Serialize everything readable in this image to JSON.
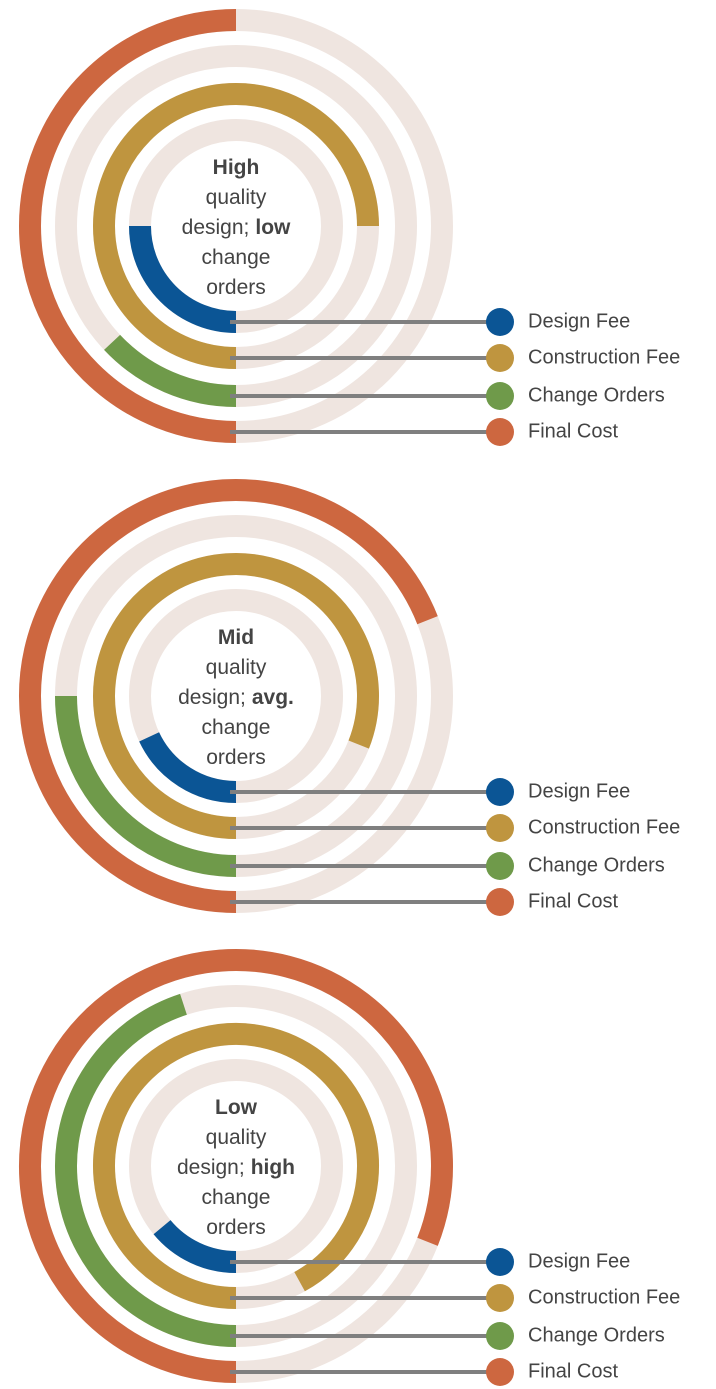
{
  "chart_data": [
    {
      "type": "radial_bar",
      "center_lines": [
        [
          {
            "text": "High",
            "bold": true
          }
        ],
        [
          {
            "text": "quality",
            "bold": false
          }
        ],
        [
          {
            "text": "design;",
            "bold": false
          },
          {
            "text": "low",
            "bold": true
          }
        ],
        [
          {
            "text": "change",
            "bold": false
          }
        ],
        [
          {
            "text": "orders",
            "bold": false
          }
        ]
      ],
      "categories": [
        "Design Fee",
        "Construction Fee",
        "Change Orders",
        "Final Cost"
      ],
      "values": [
        25,
        75,
        13,
        50
      ],
      "colors": [
        "#0b5595",
        "#bf953f",
        "#6f9a4a",
        "#cd6740"
      ]
    },
    {
      "type": "radial_bar",
      "center_lines": [
        [
          {
            "text": "Mid",
            "bold": true
          }
        ],
        [
          {
            "text": "quality",
            "bold": false
          }
        ],
        [
          {
            "text": "design;",
            "bold": false
          },
          {
            "text": "avg.",
            "bold": true
          }
        ],
        [
          {
            "text": "change",
            "bold": false
          }
        ],
        [
          {
            "text": "orders",
            "bold": false
          }
        ]
      ],
      "categories": [
        "Design Fee",
        "Construction Fee",
        "Change Orders",
        "Final Cost"
      ],
      "values": [
        18,
        81,
        25,
        69
      ],
      "colors": [
        "#0b5595",
        "#bf953f",
        "#6f9a4a",
        "#cd6740"
      ]
    },
    {
      "type": "radial_bar",
      "center_lines": [
        [
          {
            "text": "Low",
            "bold": true
          }
        ],
        [
          {
            "text": "quality",
            "bold": false
          }
        ],
        [
          {
            "text": "design;",
            "bold": false
          },
          {
            "text": "high",
            "bold": true
          }
        ],
        [
          {
            "text": "change",
            "bold": false
          }
        ],
        [
          {
            "text": "orders",
            "bold": false
          }
        ]
      ],
      "categories": [
        "Design Fee",
        "Construction Fee",
        "Change Orders",
        "Final Cost"
      ],
      "values": [
        14,
        92,
        45,
        81
      ],
      "colors": [
        "#0b5595",
        "#bf953f",
        "#6f9a4a",
        "#cd6740"
      ]
    }
  ]
}
